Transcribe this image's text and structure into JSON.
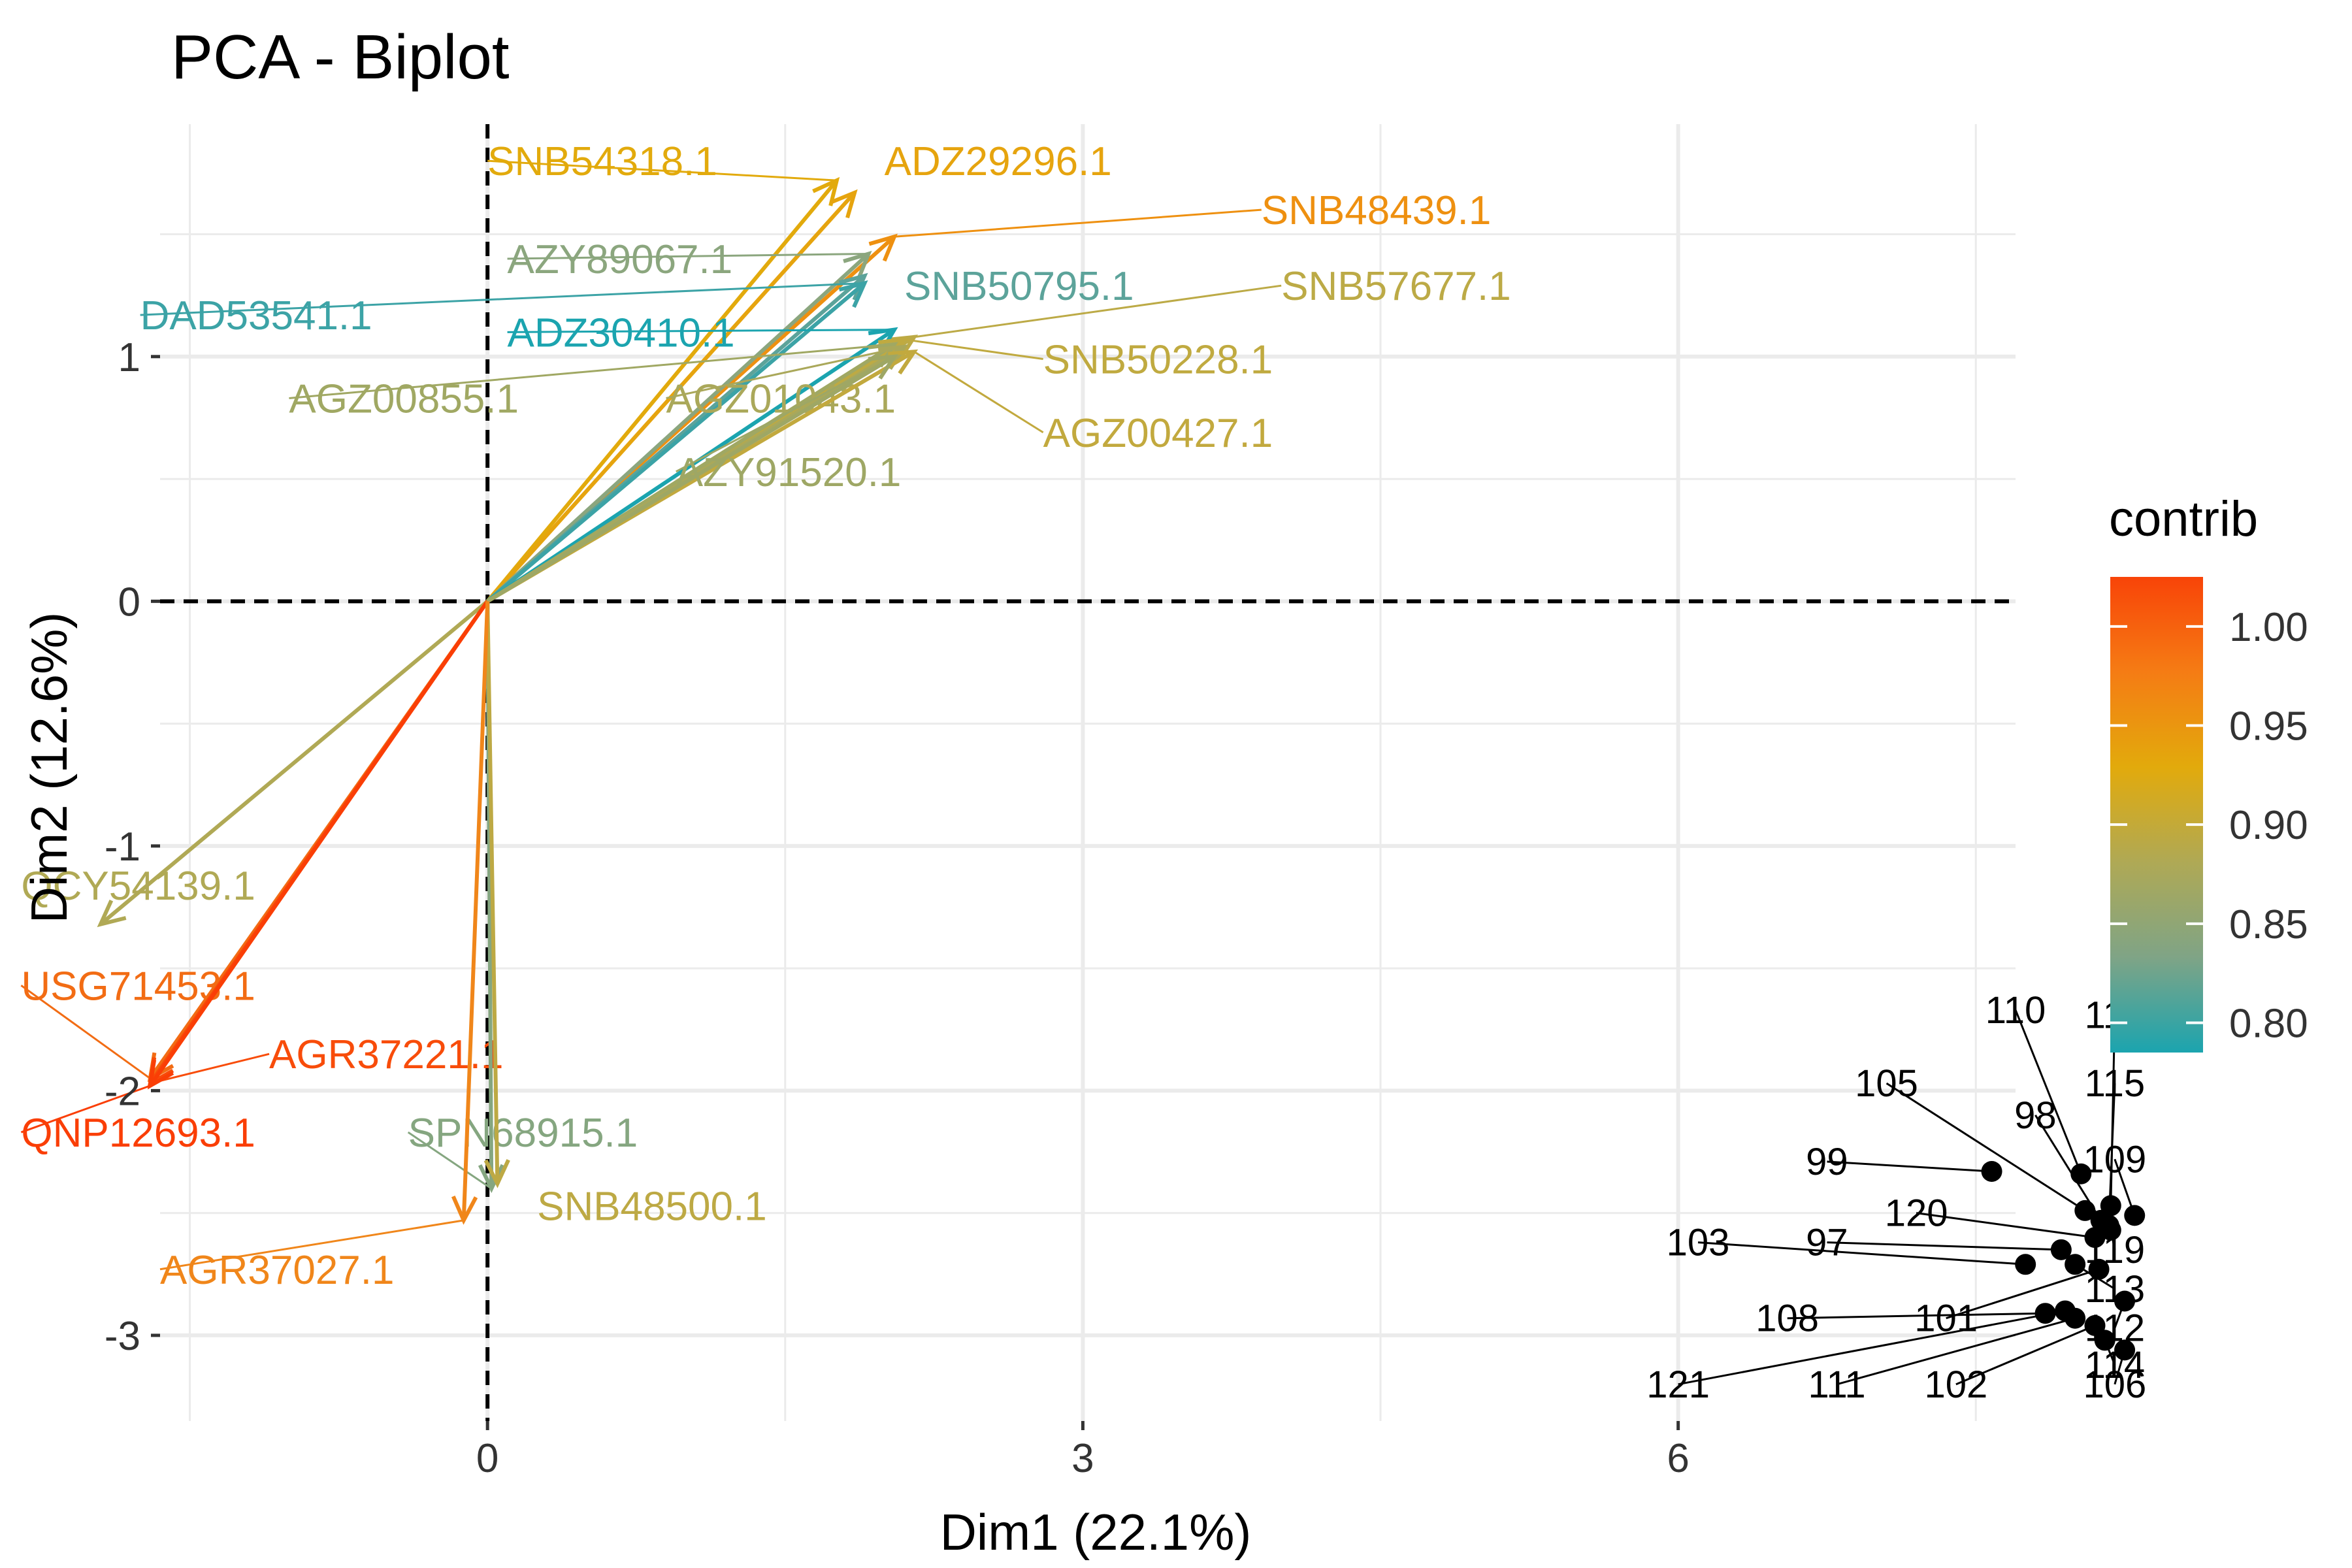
{
  "chart_data": {
    "type": "scatter",
    "subtype": "pca-biplot",
    "title": "PCA - Biplot",
    "xlabel": "Dim1 (22.1%)",
    "ylabel": "Dim2 (12.6%)",
    "xlim": [
      -1.65,
      7.7
    ],
    "ylim": [
      -3.35,
      1.95
    ],
    "x_ticks": [
      {
        "value": 0,
        "label": "0"
      },
      {
        "value": 3,
        "label": "3"
      },
      {
        "value": 6,
        "label": "6"
      }
    ],
    "y_ticks": [
      {
        "value": -3,
        "label": "-3"
      },
      {
        "value": -2,
        "label": "-2"
      },
      {
        "value": -1,
        "label": "-1"
      },
      {
        "value": 0,
        "label": "0"
      },
      {
        "value": 1,
        "label": "1"
      }
    ],
    "grid": true,
    "reference_lines": {
      "x": 0,
      "y": 0,
      "style": "dashed"
    },
    "legend": {
      "title": "contrib",
      "placement": "right",
      "type": "gradient",
      "min": 0.785,
      "max": 1.025,
      "ticks": [
        {
          "value": 1.0,
          "label": "1.00"
        },
        {
          "value": 0.95,
          "label": "0.95"
        },
        {
          "value": 0.9,
          "label": "0.90"
        },
        {
          "value": 0.85,
          "label": "0.85"
        },
        {
          "value": 0.8,
          "label": "0.80"
        }
      ],
      "gradient_colors": [
        "#F84408",
        "#F57C14",
        "#E2AA0C",
        "#AFA955",
        "#7FA486",
        "#1BA4AF"
      ]
    },
    "variables": [
      {
        "name": "SNB54318.1",
        "x": 1.76,
        "y": 1.72,
        "contrib": 0.9,
        "color": "#E2AA0C",
        "label_x": 0.0,
        "label_y": 1.8,
        "label_anchor": "start"
      },
      {
        "name": "ADZ29296.1",
        "x": 1.85,
        "y": 1.67,
        "contrib": 0.91,
        "color": "#E6A40E",
        "label_x": 2.0,
        "label_y": 1.8,
        "label_anchor": "start"
      },
      {
        "name": "SNB48439.1",
        "x": 2.05,
        "y": 1.49,
        "contrib": 0.93,
        "color": "#EE9010",
        "label_x": 3.9,
        "label_y": 1.6,
        "label_anchor": "start"
      },
      {
        "name": "AZY89067.1",
        "x": 1.92,
        "y": 1.42,
        "contrib": 0.83,
        "color": "#8BA67E",
        "label_x": 0.1,
        "label_y": 1.4,
        "label_anchor": "start"
      },
      {
        "name": "SNB50795.1",
        "x": 1.9,
        "y": 1.33,
        "contrib": 0.82,
        "color": "#5CA39A",
        "label_x": 2.1,
        "label_y": 1.29,
        "label_anchor": "start"
      },
      {
        "name": "SNB57677.1",
        "x": 2.15,
        "y": 1.08,
        "contrib": 0.87,
        "color": "#BCAA46",
        "label_x": 4.0,
        "label_y": 1.29,
        "label_anchor": "start"
      },
      {
        "name": "DAD53541.1",
        "x": 1.9,
        "y": 1.3,
        "contrib": 0.8,
        "color": "#3CA3A6",
        "label_x": -1.75,
        "label_y": 1.17,
        "label_anchor": "start"
      },
      {
        "name": "ADZ30410.1",
        "x": 2.05,
        "y": 1.11,
        "contrib": 0.795,
        "color": "#1BA4AF",
        "label_x": 0.1,
        "label_y": 1.1,
        "label_anchor": "start"
      },
      {
        "name": "SNB50228.1",
        "x": 2.1,
        "y": 1.07,
        "contrib": 0.87,
        "color": "#C0AA40",
        "label_x": 2.8,
        "label_y": 0.99,
        "label_anchor": "start"
      },
      {
        "name": "AGZ00855.1",
        "x": 2.05,
        "y": 1.05,
        "contrib": 0.84,
        "color": "#A0A863",
        "label_x": -1.0,
        "label_y": 0.83,
        "label_anchor": "start"
      },
      {
        "name": "AGZ01043.1",
        "x": 2.1,
        "y": 1.04,
        "contrib": 0.85,
        "color": "#AAA85A",
        "label_x": 0.9,
        "label_y": 0.83,
        "label_anchor": "start"
      },
      {
        "name": "AGZ00427.1",
        "x": 2.15,
        "y": 1.02,
        "contrib": 0.87,
        "color": "#C2A93E",
        "label_x": 2.8,
        "label_y": 0.69,
        "label_anchor": "start"
      },
      {
        "name": "AZY91520.1",
        "x": 2.05,
        "y": 1.0,
        "contrib": 0.84,
        "color": "#9EA765",
        "label_x": 0.95,
        "label_y": 0.53,
        "label_anchor": "start"
      },
      {
        "name": "QCY54139.1",
        "x": -1.95,
        "y": -1.32,
        "contrib": 0.86,
        "color": "#B0A955",
        "label_x": -2.35,
        "label_y": -1.16,
        "label_anchor": "start"
      },
      {
        "name": "USG71453.1",
        "x": -1.7,
        "y": -1.95,
        "contrib": 0.96,
        "color": "#F26C14",
        "label_x": -2.35,
        "label_y": -1.57,
        "label_anchor": "start"
      },
      {
        "name": "AGR37221.1",
        "x": -1.7,
        "y": -1.97,
        "contrib": 0.99,
        "color": "#F84C0A",
        "label_x": -1.1,
        "label_y": -1.85,
        "label_anchor": "start"
      },
      {
        "name": "QNP12693.1",
        "x": -1.7,
        "y": -1.98,
        "contrib": 1.01,
        "color": "#FA3E06",
        "label_x": -2.35,
        "label_y": -2.17,
        "label_anchor": "start"
      },
      {
        "name": "SPN68915.1",
        "x": 0.02,
        "y": -2.4,
        "contrib": 0.83,
        "color": "#85A680",
        "label_x": -0.4,
        "label_y": -2.17,
        "label_anchor": "start"
      },
      {
        "name": "SNB48500.1",
        "x": 0.05,
        "y": -2.38,
        "contrib": 0.87,
        "color": "#BDA944",
        "label_x": 0.25,
        "label_y": -2.47,
        "label_anchor": "start"
      },
      {
        "name": "AGR37027.1",
        "x": -0.12,
        "y": -2.53,
        "contrib": 0.94,
        "color": "#F0861A",
        "label_x": -1.65,
        "label_y": -2.73,
        "label_anchor": "start"
      }
    ],
    "individuals": [
      {
        "name": "99",
        "x": 7.58,
        "y": -2.33,
        "label_x": 6.75,
        "label_y": -2.29
      },
      {
        "name": "110",
        "x": 8.03,
        "y": -2.34,
        "label_x": 7.7,
        "label_y": -1.67
      },
      {
        "name": "116",
        "x": 8.18,
        "y": -2.47,
        "label_x": 8.2,
        "label_y": -1.69
      },
      {
        "name": "105",
        "x": 8.05,
        "y": -2.49,
        "label_x": 7.05,
        "label_y": -1.97
      },
      {
        "name": "98",
        "x": 8.13,
        "y": -2.53,
        "label_x": 7.8,
        "label_y": -2.1
      },
      {
        "name": "115",
        "x": 8.17,
        "y": -2.55,
        "label_x": 8.2,
        "label_y": -1.97
      },
      {
        "name": "109",
        "x": 8.3,
        "y": -2.51,
        "label_x": 8.2,
        "label_y": -2.28
      },
      {
        "name": "120",
        "x": 8.1,
        "y": -2.6,
        "label_x": 7.2,
        "label_y": -2.5
      },
      {
        "name": "119",
        "x": 8.18,
        "y": -2.57,
        "label_x": 8.2,
        "label_y": -2.65
      },
      {
        "name": "103",
        "x": 7.75,
        "y": -2.71,
        "label_x": 6.1,
        "label_y": -2.62
      },
      {
        "name": "97",
        "x": 7.93,
        "y": -2.65,
        "label_x": 6.75,
        "label_y": -2.62
      },
      {
        "name": "113",
        "x": 8.0,
        "y": -2.71,
        "label_x": 8.2,
        "label_y": -2.81
      },
      {
        "name": "101",
        "x": 8.12,
        "y": -2.73,
        "label_x": 7.35,
        "label_y": -2.93
      },
      {
        "name": "108",
        "x": 7.85,
        "y": -2.91,
        "label_x": 6.55,
        "label_y": -2.93
      },
      {
        "name": "112",
        "x": 8.25,
        "y": -2.86,
        "label_x": 8.2,
        "label_y": -2.97
      },
      {
        "name": "121",
        "x": 7.95,
        "y": -2.9,
        "label_x": 6.0,
        "label_y": -3.2
      },
      {
        "name": "111",
        "x": 8.0,
        "y": -2.93,
        "label_x": 6.8,
        "label_y": -3.2
      },
      {
        "name": "102",
        "x": 8.1,
        "y": -2.96,
        "label_x": 7.4,
        "label_y": -3.2
      },
      {
        "name": "114",
        "x": 8.15,
        "y": -3.02,
        "label_x": 8.2,
        "label_y": -3.12
      },
      {
        "name": "106",
        "x": 8.25,
        "y": -3.06,
        "label_x": 8.2,
        "label_y": -3.2
      }
    ]
  }
}
